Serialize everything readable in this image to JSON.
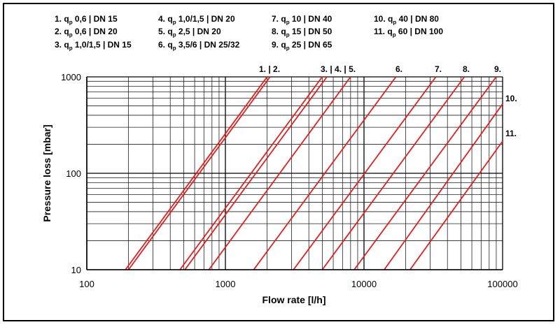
{
  "chart_data": {
    "type": "line",
    "xscale": "log",
    "yscale": "log",
    "xlim": [
      100,
      100000
    ],
    "ylim": [
      10,
      1000
    ],
    "xlabel": "Flow rate [l/h]",
    "ylabel": "Pressure loss [mbar]",
    "xticks": [
      "100",
      "1000",
      "10000",
      "100000"
    ],
    "yticks": [
      "10",
      "100",
      "1000"
    ],
    "grid": true,
    "line_color": "#e02020",
    "legend": [
      {
        "num": "1.",
        "q": "q",
        "sub": "p",
        "rest": " 0,6 | DN 15"
      },
      {
        "num": "2.",
        "q": "q",
        "sub": "p",
        "rest": " 0,6 | DN 20"
      },
      {
        "num": "3.",
        "q": "q",
        "sub": "p",
        "rest": " 1,0/1,5 | DN 15"
      },
      {
        "num": "4.",
        "q": "q",
        "sub": "p",
        "rest": " 1,0/1,5 | DN 20"
      },
      {
        "num": "5.",
        "q": "q",
        "sub": "p",
        "rest": " 2,5 | DN 20"
      },
      {
        "num": "6.",
        "q": "q",
        "sub": "p",
        "rest": " 3,5/6 | DN 25/32"
      },
      {
        "num": "7.",
        "q": "q",
        "sub": "p",
        "rest": " 10 | DN 40"
      },
      {
        "num": "8.",
        "q": "q",
        "sub": "p",
        "rest": " 15 | DN 50"
      },
      {
        "num": "9.",
        "q": "q",
        "sub": "p",
        "rest": " 25 | DN 65"
      },
      {
        "num": "10.",
        "q": "q",
        "sub": "p",
        "rest": " 40 | DN 80"
      },
      {
        "num": "11.",
        "q": "q",
        "sub": "p",
        "rest": " 60 | DN 100"
      }
    ],
    "series_labels": [
      "1. | 2.",
      "3. | 4. | 5.",
      "6.",
      "7.",
      "8.",
      "9.",
      "10.",
      "11."
    ],
    "series": [
      {
        "name": "1.",
        "points": [
          [
            190,
            10
          ],
          [
            2000,
            1000
          ]
        ]
      },
      {
        "name": "2.",
        "points": [
          [
            200,
            10
          ],
          [
            2100,
            1000
          ]
        ]
      },
      {
        "name": "3.",
        "points": [
          [
            470,
            10
          ],
          [
            5000,
            1000
          ]
        ]
      },
      {
        "name": "4.",
        "points": [
          [
            510,
            10
          ],
          [
            5400,
            1000
          ]
        ]
      },
      {
        "name": "5.",
        "points": [
          [
            760,
            10
          ],
          [
            8000,
            1000
          ]
        ]
      },
      {
        "name": "6.",
        "points": [
          [
            1600,
            10
          ],
          [
            17000,
            1000
          ]
        ]
      },
      {
        "name": "7.",
        "points": [
          [
            3100,
            10
          ],
          [
            33000,
            1000
          ]
        ]
      },
      {
        "name": "8.",
        "points": [
          [
            5000,
            10
          ],
          [
            53000,
            1000
          ]
        ]
      },
      {
        "name": "9.",
        "points": [
          [
            8500,
            10
          ],
          [
            90000,
            1000
          ]
        ]
      },
      {
        "name": "10.",
        "points": [
          [
            14000,
            10
          ],
          [
            100000,
            523
          ]
        ]
      },
      {
        "name": "11.",
        "points": [
          [
            21500,
            10
          ],
          [
            100000,
            215
          ]
        ]
      }
    ]
  }
}
